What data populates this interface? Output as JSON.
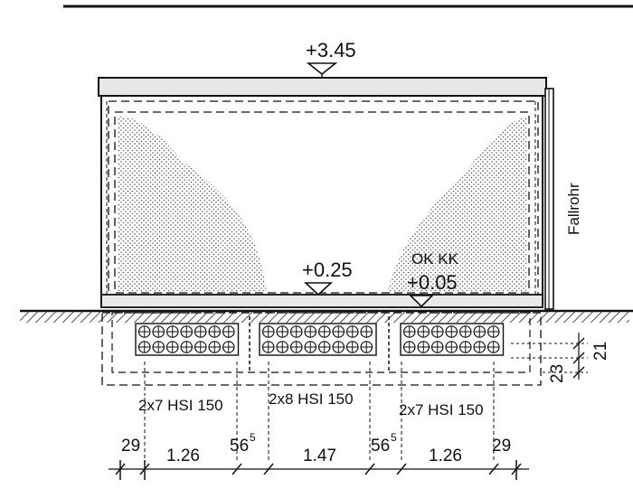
{
  "levels": {
    "top": "+3.45",
    "inside_floor": "+0.25",
    "ok_kk_label": "OK KK",
    "ok_kk_value": "+0.05"
  },
  "labels": {
    "downpipe": "Fallrohr",
    "pile_groups": [
      "2x7 HSI 150",
      "2x8 HSI 150",
      "2x7 HSI 150"
    ]
  },
  "pile_counts": [
    14,
    16,
    14
  ],
  "horizontal_dims": {
    "end_left": "29",
    "group1": "1.26",
    "gap1": "56",
    "gap1_sup": "5",
    "group2": "1.47",
    "gap2": "56",
    "gap2_sup": "5",
    "group3": "1.26",
    "end_right": "29"
  },
  "vertical_dims": {
    "box_height": "21",
    "foundation_depth": "23"
  }
}
